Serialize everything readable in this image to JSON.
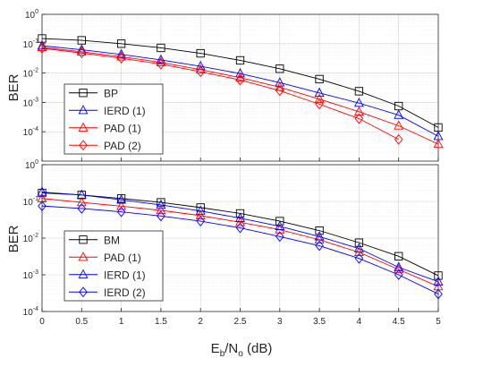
{
  "chart_data": [
    {
      "type": "line",
      "title": "",
      "xlabel": "",
      "ylabel": "BER",
      "yscale": "log",
      "xlim": [
        0,
        5
      ],
      "ylim": [
        1e-05,
        1
      ],
      "x": [
        0,
        0.5,
        1,
        1.5,
        2,
        2.5,
        3,
        3.5,
        4,
        4.5,
        5
      ],
      "xticks": [
        "0",
        "0.5",
        "1",
        "1.5",
        "2",
        "2.5",
        "3",
        "3.5",
        "4",
        "4.5",
        "5"
      ],
      "yticks": [
        {
          "base": "10",
          "exp": "0",
          "value": 1
        },
        {
          "base": "10",
          "exp": "-1",
          "value": 0.1
        },
        {
          "base": "10",
          "exp": "-2",
          "value": 0.01
        },
        {
          "base": "10",
          "exp": "-3",
          "value": 0.001
        },
        {
          "base": "10",
          "exp": "-4",
          "value": 0.0001
        }
      ],
      "grid": true,
      "legend_position": "bottom-left",
      "series": [
        {
          "name": "BP",
          "color": "#000000",
          "marker": "square",
          "values": [
            0.15,
            0.13,
            0.1,
            0.072,
            0.047,
            0.027,
            0.014,
            0.0062,
            0.0024,
            0.00075,
            0.00014
          ]
        },
        {
          "name": "IERD (1)",
          "color": "#0000ff",
          "marker": "triangle",
          "values": [
            0.085,
            0.062,
            0.043,
            0.028,
            0.017,
            0.0096,
            0.0047,
            0.0021,
            0.00095,
            0.00037,
            7e-05
          ]
        },
        {
          "name": "PAD (1)",
          "color": "#ff0000",
          "marker": "triangle",
          "values": [
            0.075,
            0.053,
            0.036,
            0.023,
            0.013,
            0.007,
            0.0033,
            0.0013,
            0.00048,
            0.00016,
            3.8e-05
          ]
        },
        {
          "name": "PAD (2)",
          "color": "#ff0000",
          "marker": "diamond",
          "values": [
            0.07,
            0.048,
            0.032,
            0.02,
            0.011,
            0.0058,
            0.0025,
            0.00087,
            0.00028,
            5.5e-05,
            null
          ]
        }
      ]
    },
    {
      "type": "line",
      "title": "",
      "xlabel": "E_b/N_o (dB)",
      "xlabel_parts": {
        "e": "E",
        "b": "b",
        "slash_n": "/N",
        "o": "o",
        "unit": " (dB)"
      },
      "ylabel": "BER",
      "yscale": "log",
      "xlim": [
        0,
        5
      ],
      "ylim": [
        0.0001,
        1
      ],
      "x": [
        0,
        0.5,
        1,
        1.5,
        2,
        2.5,
        3,
        3.5,
        4,
        4.5,
        5
      ],
      "xticks": [
        "0",
        "0.5",
        "1",
        "1.5",
        "2",
        "2.5",
        "3",
        "3.5",
        "4",
        "4.5",
        "5"
      ],
      "yticks": [
        {
          "base": "10",
          "exp": "0",
          "value": 1
        },
        {
          "base": "10",
          "exp": "-1",
          "value": 0.1
        },
        {
          "base": "10",
          "exp": "-2",
          "value": 0.01
        },
        {
          "base": "10",
          "exp": "-3",
          "value": 0.001
        },
        {
          "base": "10",
          "exp": "-4",
          "value": 0.0001
        }
      ],
      "grid": true,
      "legend_position": "bottom-left",
      "series": [
        {
          "name": "BM",
          "color": "#000000",
          "marker": "square",
          "values": [
            0.17,
            0.15,
            0.12,
            0.094,
            0.068,
            0.047,
            0.029,
            0.016,
            0.0075,
            0.0032,
            0.00095
          ]
        },
        {
          "name": "PAD (1)",
          "color": "#ff0000",
          "marker": "triangle",
          "values": [
            0.12,
            0.094,
            0.074,
            0.057,
            0.041,
            0.027,
            0.017,
            0.009,
            0.0041,
            0.0014,
            0.00048
          ]
        },
        {
          "name": "IERD (1)",
          "color": "#0000ff",
          "marker": "triangle",
          "values": [
            0.18,
            0.15,
            0.11,
            0.08,
            0.055,
            0.035,
            0.021,
            0.011,
            0.0052,
            0.0016,
            0.00065
          ]
        },
        {
          "name": "IERD (2)",
          "color": "#0000ff",
          "marker": "diamond",
          "values": [
            0.075,
            0.064,
            0.052,
            0.04,
            0.029,
            0.019,
            0.011,
            0.0062,
            0.0028,
            0.001,
            0.0003
          ]
        }
      ]
    }
  ]
}
